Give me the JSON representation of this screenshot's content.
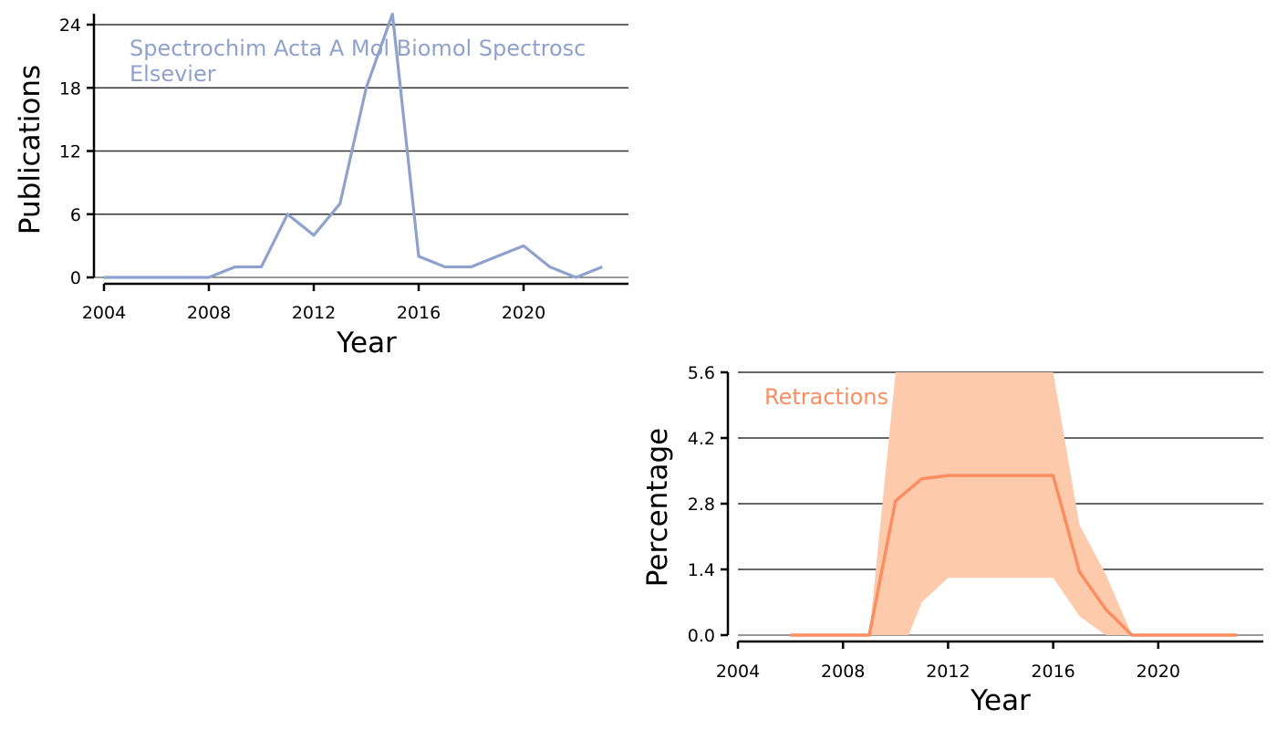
{
  "colors": {
    "publications": "#8fa2cd",
    "retractions": "#fc8d62",
    "band": "#fdcbab"
  },
  "chart_data": [
    {
      "type": "line",
      "annotation_line1": "Spectrochim Acta A Mol Biomol Spectrosc",
      "annotation_line2": "Elsevier",
      "xlabel": "Year",
      "ylabel": "Publications",
      "xlim": [
        2004,
        2024
      ],
      "ylim": [
        0,
        24
      ],
      "xticks": [
        2004,
        2008,
        2012,
        2016,
        2020
      ],
      "yticks": [
        0,
        6,
        12,
        18,
        24
      ],
      "grid": "horizontal",
      "series": [
        {
          "x": [
            2004,
            2005,
            2006,
            2007,
            2008,
            2009,
            2010,
            2011,
            2012,
            2013,
            2014,
            2015,
            2016,
            2017,
            2018,
            2019,
            2020,
            2021,
            2022,
            2023
          ],
          "values": [
            0,
            0,
            0,
            0,
            0,
            1,
            1,
            6,
            4,
            7,
            18,
            25,
            2,
            1,
            1,
            2,
            3,
            1,
            0,
            1
          ]
        }
      ]
    },
    {
      "type": "area",
      "annotation": "Retractions",
      "xlabel": "Year",
      "ylabel": "Percentage",
      "xlim": [
        2004,
        2024
      ],
      "ylim": [
        0,
        5.6
      ],
      "xticks": [
        2004,
        2008,
        2012,
        2016,
        2020
      ],
      "yticks": [
        "0.0",
        "1.4",
        "2.8",
        "4.2",
        "5.6"
      ],
      "grid": "horizontal",
      "series": [
        {
          "name": "Retractions",
          "x": [
            2006,
            2007,
            2008,
            2009,
            2010,
            2011,
            2012,
            2013,
            2014,
            2015,
            2016,
            2017,
            2018,
            2019,
            2020,
            2021,
            2022,
            2023
          ],
          "values": [
            0,
            0,
            0,
            0,
            2.86,
            3.33,
            3.4,
            3.4,
            3.4,
            3.4,
            3.4,
            1.35,
            0.55,
            0,
            0,
            0,
            0,
            0
          ]
        }
      ],
      "confidence_band": {
        "x": [
          2006,
          2007,
          2008,
          2009,
          2010,
          2010.5,
          2011,
          2012,
          2013,
          2014,
          2015,
          2016,
          2017,
          2018,
          2019,
          2020,
          2021,
          2022,
          2023
        ],
        "lower": [
          0,
          0,
          0,
          0,
          0,
          0,
          0.7,
          1.22,
          1.22,
          1.22,
          1.22,
          1.22,
          0.4,
          0,
          0,
          0,
          0,
          0,
          0
        ],
        "upper": [
          0,
          0,
          0,
          0,
          5.6,
          5.6,
          5.6,
          5.6,
          5.6,
          5.6,
          5.6,
          5.6,
          2.35,
          1.3,
          0,
          0,
          0,
          0,
          0
        ]
      }
    }
  ]
}
